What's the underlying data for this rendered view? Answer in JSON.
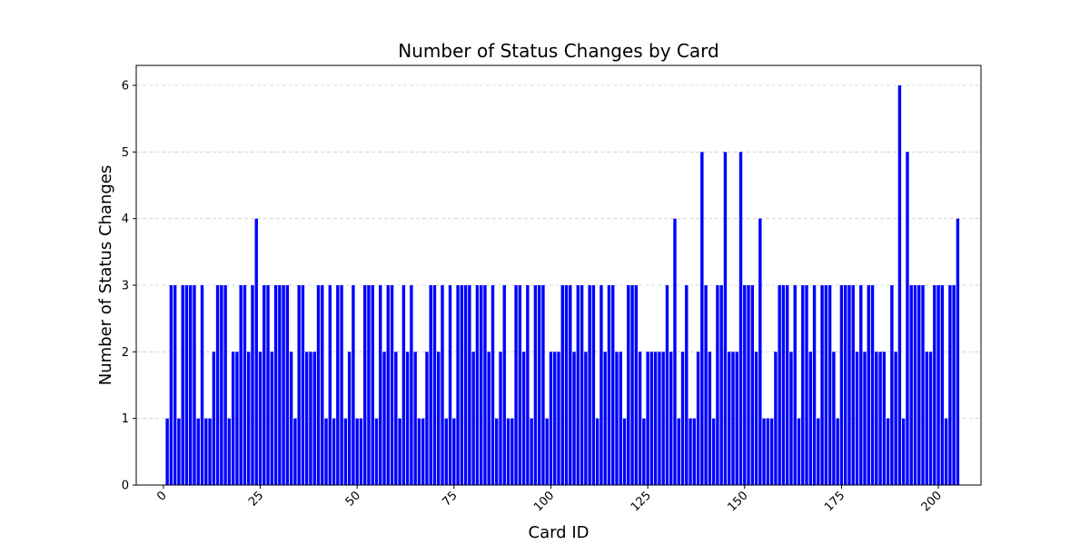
{
  "chart_data": {
    "type": "bar",
    "title": "Number of Status Changes by Card",
    "xlabel": "Card ID",
    "ylabel": "Number of Status Changes",
    "xlim": [
      -7,
      211
    ],
    "ylim": [
      0,
      6.3
    ],
    "xticks": [
      0,
      25,
      50,
      75,
      100,
      125,
      150,
      175,
      200
    ],
    "yticks": [
      0,
      1,
      2,
      3,
      4,
      5,
      6
    ],
    "grid": "y-dashed",
    "bar_color": "#0000ff",
    "x_start": 1,
    "values": [
      1,
      3,
      3,
      1,
      3,
      3,
      3,
      3,
      1,
      3,
      1,
      1,
      2,
      3,
      3,
      3,
      1,
      2,
      2,
      3,
      3,
      2,
      3,
      4,
      2,
      3,
      3,
      2,
      3,
      3,
      3,
      3,
      2,
      1,
      3,
      3,
      2,
      2,
      2,
      3,
      3,
      1,
      3,
      1,
      3,
      3,
      1,
      2,
      3,
      1,
      1,
      3,
      3,
      3,
      1,
      3,
      2,
      3,
      3,
      2,
      1,
      3,
      2,
      3,
      2,
      1,
      1,
      2,
      3,
      3,
      2,
      3,
      1,
      3,
      1,
      3,
      3,
      3,
      3,
      2,
      3,
      3,
      3,
      2,
      3,
      1,
      2,
      3,
      1,
      1,
      3,
      3,
      2,
      3,
      1,
      3,
      3,
      3,
      1,
      2,
      2,
      2,
      3,
      3,
      3,
      2,
      3,
      3,
      2,
      3,
      3,
      1,
      3,
      2,
      3,
      3,
      2,
      2,
      1,
      3,
      3,
      3,
      2,
      1,
      2,
      2,
      2,
      2,
      2,
      3,
      2,
      4,
      1,
      2,
      3,
      1,
      1,
      2,
      5,
      3,
      2,
      1,
      3,
      3,
      5,
      2,
      2,
      2,
      5,
      3,
      3,
      3,
      2,
      4,
      1,
      1,
      1,
      2,
      3,
      3,
      3,
      2,
      3,
      1,
      3,
      3,
      2,
      3,
      1,
      3,
      3,
      3,
      2,
      1,
      3,
      3,
      3,
      3,
      2,
      3,
      2,
      3,
      3,
      2,
      2,
      2,
      1,
      3,
      2,
      6,
      1,
      5,
      3,
      3,
      3,
      3,
      2,
      2,
      3,
      3,
      3,
      1,
      3,
      3,
      4
    ]
  }
}
